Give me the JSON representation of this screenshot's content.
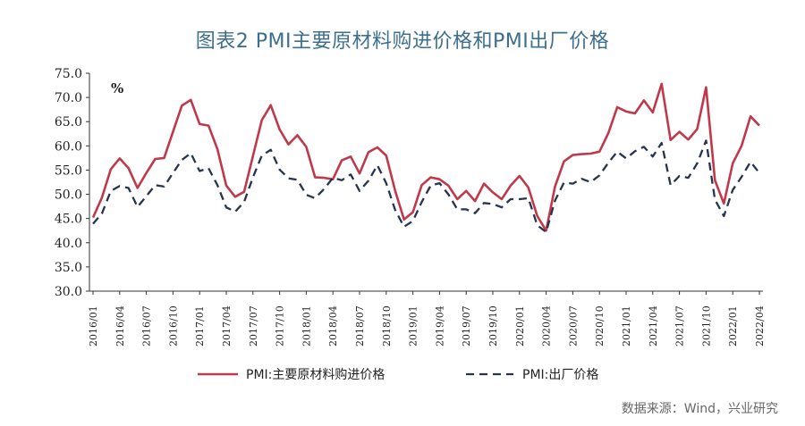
{
  "title": "图表2  PMI主要原材料购进价格和PMI出厂价格",
  "source": "数据来源：Wind，兴业研究",
  "chart_data": {
    "type": "line",
    "unit_label": "%",
    "ylim": [
      30,
      75
    ],
    "yticks": [
      "30.0",
      "35.0",
      "40.0",
      "45.0",
      "50.0",
      "55.0",
      "60.0",
      "65.0",
      "70.0",
      "75.0"
    ],
    "x_tick_labels": [
      "2016/01",
      "2016/04",
      "2016/07",
      "2016/10",
      "2017/01",
      "2017/04",
      "2017/07",
      "2017/10",
      "2018/01",
      "2018/04",
      "2018/07",
      "2018/10",
      "2019/01",
      "2019/04",
      "2019/07",
      "2019/10",
      "2020/01",
      "2020/04",
      "2020/07",
      "2020/10",
      "2021/01",
      "2021/04",
      "2021/07",
      "2021/10",
      "2022/01",
      "2022/04"
    ],
    "x_start": "2016/01",
    "grid": false,
    "legend_position": "bottom",
    "series": [
      {
        "name": "PMI:主要原材料购进价格",
        "color": "#c0394b",
        "style": "solid",
        "values": [
          45.2,
          49.3,
          55.2,
          57.4,
          55.4,
          51.3,
          54.4,
          57.3,
          57.5,
          62.9,
          68.3,
          69.5,
          64.5,
          64.2,
          59.3,
          51.8,
          49.5,
          50.5,
          57.9,
          65.3,
          68.4,
          63.4,
          60.3,
          62.2,
          59.8,
          53.5,
          53.4,
          53.1,
          57.0,
          57.8,
          54.3,
          58.7,
          59.7,
          58.0,
          50.8,
          44.8,
          46.3,
          51.9,
          53.5,
          53.1,
          51.8,
          49.0,
          50.7,
          48.6,
          52.2,
          50.4,
          49.0,
          51.8,
          53.8,
          51.4,
          45.5,
          42.5,
          51.6,
          56.8,
          58.1,
          58.3,
          58.4,
          58.8,
          62.6,
          68.0,
          67.1,
          66.7,
          69.4,
          66.9,
          72.8,
          61.2,
          62.9,
          61.3,
          63.5,
          72.1,
          52.9,
          48.1,
          56.4,
          60.0,
          66.1,
          64.2
        ]
      },
      {
        "name": "PMI:出厂价格",
        "color": "#26344d",
        "style": "dashed",
        "values": [
          43.9,
          46.0,
          50.7,
          51.7,
          51.3,
          47.4,
          49.6,
          51.9,
          51.6,
          54.4,
          57.1,
          58.5,
          54.8,
          55.4,
          51.9,
          47.3,
          46.4,
          48.4,
          53.5,
          58.0,
          59.2,
          55.1,
          53.3,
          53.0,
          49.9,
          49.2,
          51.1,
          53.4,
          52.9,
          54.1,
          50.7,
          52.8,
          56.0,
          52.3,
          46.8,
          43.3,
          44.5,
          48.4,
          51.8,
          52.3,
          50.0,
          46.9,
          46.9,
          46.1,
          48.2,
          48.0,
          47.3,
          49.0,
          49.0,
          49.2,
          43.6,
          42.2,
          48.7,
          52.4,
          52.2,
          53.2,
          52.5,
          53.9,
          56.5,
          58.8,
          57.4,
          58.9,
          59.8,
          57.8,
          60.6,
          51.9,
          53.8,
          53.4,
          56.4,
          61.1,
          48.9,
          45.5,
          50.9,
          53.6,
          56.7,
          54.4
        ]
      }
    ]
  }
}
